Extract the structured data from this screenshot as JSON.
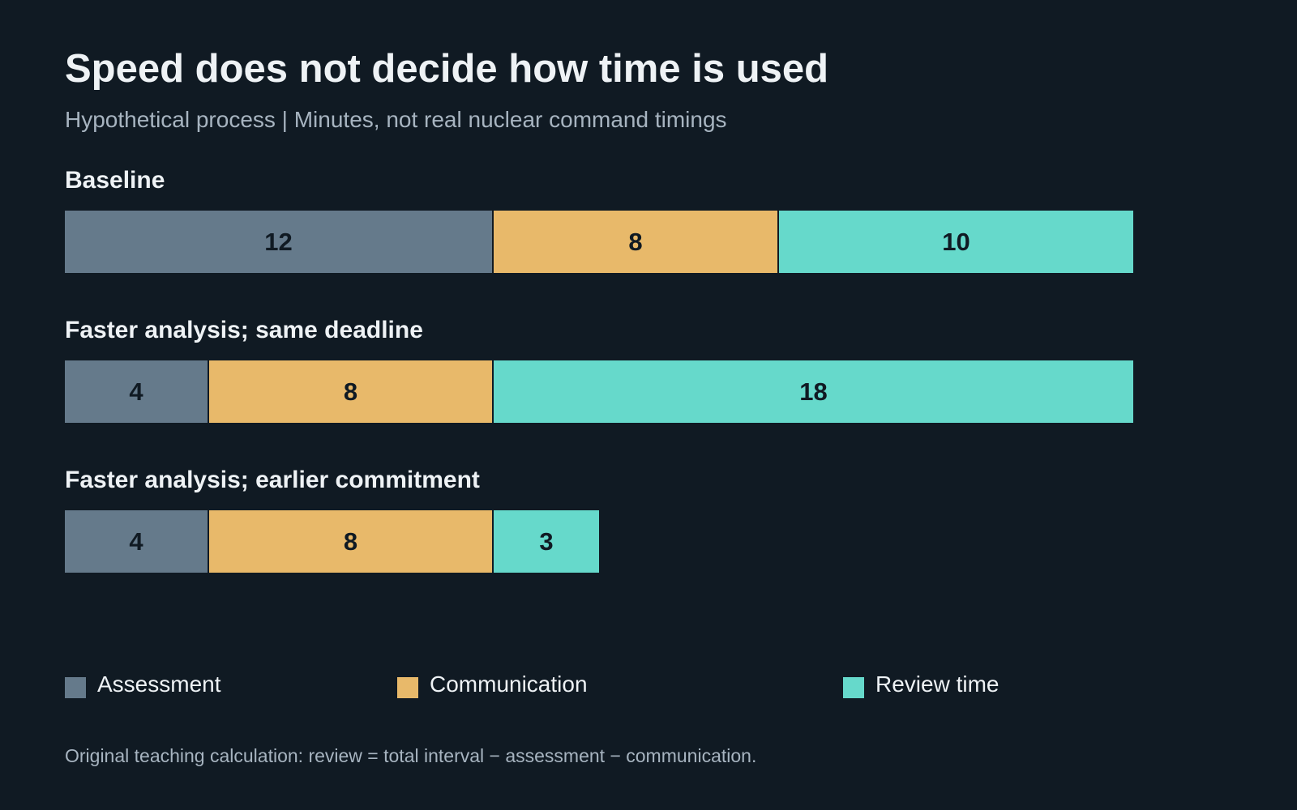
{
  "title": "Speed does not decide how time is used",
  "subtitle": "Hypothetical process | Minutes, not real nuclear command timings",
  "note": "Original teaching calculation: review = total interval − assessment − communication.",
  "chart_data": {
    "type": "bar",
    "orientation": "horizontal",
    "stacked": true,
    "title": "Speed does not decide how time is used",
    "subtitle": "Hypothetical process | Minutes, not real nuclear command timings",
    "xlim": [
      0,
      30
    ],
    "grid": false,
    "legend_position": "bottom",
    "categories": [
      "Baseline",
      "Faster analysis; same deadline",
      "Faster analysis; earlier commitment"
    ],
    "series": [
      {
        "name": "Assessment",
        "color": "#657a8b",
        "values": [
          12,
          4,
          4
        ]
      },
      {
        "name": "Communication",
        "color": "#e8b96a",
        "values": [
          8,
          8,
          8
        ]
      },
      {
        "name": "Review time",
        "color": "#66d9cb",
        "values": [
          10,
          18,
          3
        ]
      }
    ]
  }
}
